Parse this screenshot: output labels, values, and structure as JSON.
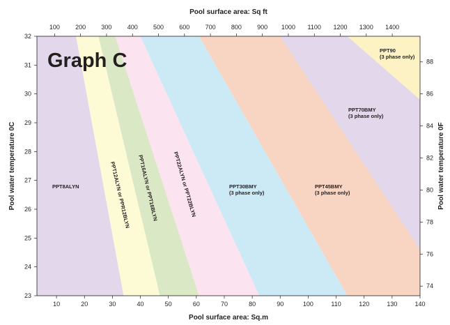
{
  "chart_data": {
    "type": "area",
    "title": "Graph C",
    "x_bottom": {
      "label": "Pool surface area: Sq.m",
      "range": [
        3,
        140
      ],
      "ticks": [
        10,
        20,
        30,
        40,
        50,
        60,
        70,
        80,
        90,
        100,
        110,
        120,
        130,
        140
      ]
    },
    "x_top": {
      "label": "Pool surface area: Sq ft",
      "range": [
        32,
        1507
      ],
      "ticks": [
        100,
        200,
        300,
        400,
        500,
        600,
        700,
        800,
        900,
        1000,
        1100,
        1200,
        1300,
        1400
      ]
    },
    "y_left": {
      "label": "Pool water temperature 0C",
      "range": [
        23,
        32
      ],
      "ticks": [
        23,
        24,
        25,
        26,
        27,
        28,
        29,
        30,
        31,
        32
      ]
    },
    "y_right": {
      "label": "Pool water temperature 0F",
      "range": [
        73.4,
        89.6
      ],
      "ticks": [
        74,
        76,
        78,
        80,
        82,
        84,
        86,
        88
      ]
    },
    "boundaries": [
      {
        "name": "PPT8ALYN / PPT12ALYN",
        "x_at_23": 34,
        "x_at_32": 17
      },
      {
        "name": "PPT12ALYN / PPT16ALYN",
        "x_at_23": 47,
        "x_at_32": 25
      },
      {
        "name": "PPT16ALYN / PPT22ALYN",
        "x_at_23": 61,
        "x_at_32": 31
      },
      {
        "name": "PPT22ALYN / PPT30BMY",
        "x_at_23": 82.5,
        "x_at_32": 40
      },
      {
        "name": "PPT30BMY / PPT45BMY",
        "x_at_23": 114,
        "x_at_32": 61
      },
      {
        "name": "PPT45BMY / PPT70BMY",
        "x_at_23": 140,
        "y_at_140": 24.6,
        "x_at_32": 90
      },
      {
        "name": "PPT70BMY / PPT90",
        "x_at_32": 114,
        "y_at_140": 29.8
      }
    ],
    "regions": [
      {
        "lines": [
          "PPT8ALYN"
        ],
        "color": "#e2d7eb",
        "rotate": 0
      },
      {
        "lines": [
          "PPT12ALYN or PPR12BLYN"
        ],
        "color": "#fdfbd6",
        "rotate": 77
      },
      {
        "lines": [
          "PPT16ALYN or PPT16BLYN"
        ],
        "color": "#dbe8c6",
        "rotate": 77
      },
      {
        "lines": [
          "PPT22ALYN or PPT22BLYN"
        ],
        "color": "#fbe3ef",
        "rotate": 74
      },
      {
        "lines": [
          "PPT30BMY",
          "(3 phase only)"
        ],
        "color": "#cceaf6",
        "rotate": 0
      },
      {
        "lines": [
          "PPT45BMY",
          "(3 phase only)"
        ],
        "color": "#f8d5c3",
        "rotate": 0
      },
      {
        "lines": [
          "PPT70BMY",
          "(3 phase only)"
        ],
        "color": "#e2d7eb",
        "rotate": 0
      },
      {
        "lines": [
          "PPT90",
          "(3 phase only)"
        ],
        "color": "#fdf2c3",
        "rotate": 0
      }
    ]
  }
}
